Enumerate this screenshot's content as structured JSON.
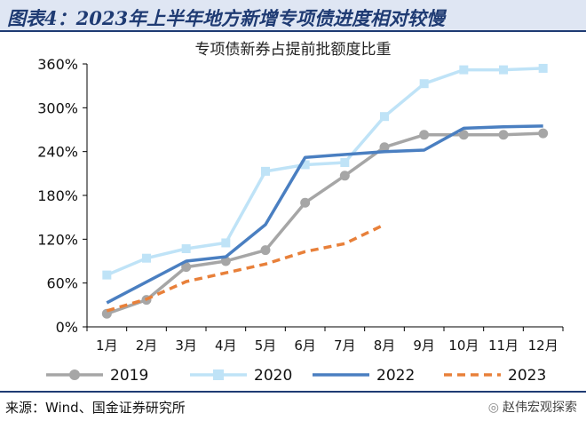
{
  "header": {
    "title": "图表4：2023年上半年地方新增专项债进度相对较慢"
  },
  "footer": {
    "source": "来源：Wind、国金证券研究所",
    "watermark": "赵伟宏观探索",
    "watermark_icon": "wechat-icon"
  },
  "chart_data": {
    "type": "line",
    "title": "专项债新券占提前批额度比重",
    "categories": [
      "1月",
      "2月",
      "3月",
      "4月",
      "5月",
      "6月",
      "7月",
      "8月",
      "9月",
      "10月",
      "11月",
      "12月"
    ],
    "ylim": [
      0,
      360
    ],
    "yticks": [
      0,
      60,
      120,
      180,
      240,
      300,
      360
    ],
    "ytick_labels": [
      "0%",
      "60%",
      "120%",
      "180%",
      "240%",
      "300%",
      "360%"
    ],
    "grid": false,
    "legend_position": "bottom",
    "series": [
      {
        "name": "2019",
        "color": "#a6a6a6",
        "style": "solid",
        "marker": "circle",
        "values": [
          18,
          37,
          82,
          90,
          105,
          170,
          207,
          246,
          263,
          263,
          263,
          265
        ]
      },
      {
        "name": "2020",
        "color": "#bfe3f7",
        "style": "solid",
        "marker": "square",
        "values": [
          71,
          94,
          107,
          115,
          213,
          222,
          225,
          288,
          333,
          352,
          352,
          354
        ]
      },
      {
        "name": "2022",
        "color": "#4a7fc1",
        "style": "solid",
        "marker": "none",
        "values": [
          33,
          null,
          90,
          96,
          140,
          232,
          null,
          240,
          242,
          272,
          274,
          275
        ]
      },
      {
        "name": "2023",
        "color": "#e8803a",
        "style": "dashed",
        "marker": "none",
        "values": [
          22,
          38,
          62,
          74,
          86,
          103,
          114,
          140,
          null,
          null,
          null,
          null
        ]
      }
    ]
  }
}
